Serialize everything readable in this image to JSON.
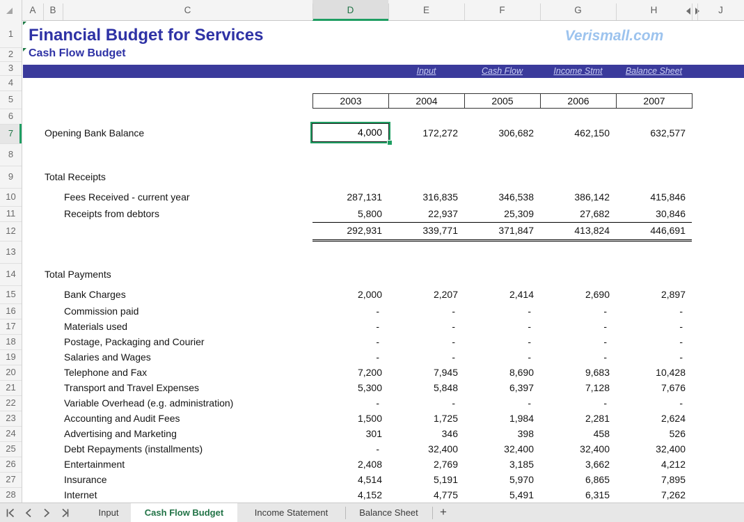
{
  "grid": {
    "column_headers": [
      "A",
      "B",
      "C",
      "D",
      "E",
      "F",
      "G",
      "H",
      "J"
    ],
    "active_column": "D",
    "row_numbers": [
      "1",
      "2",
      "3",
      "4",
      "5",
      "6",
      "7",
      "8",
      "9",
      "10",
      "11",
      "12",
      "13",
      "14",
      "15",
      "16",
      "17",
      "18",
      "19",
      "20",
      "21",
      "22",
      "23",
      "24",
      "25",
      "26",
      "27",
      "28"
    ],
    "active_row": "7"
  },
  "header": {
    "title": "Financial Budget for Services",
    "subtitle": "Cash Flow Budget",
    "brand": "Verismall.com"
  },
  "nav_links": [
    {
      "label": "Input"
    },
    {
      "label": "Cash Flow"
    },
    {
      "label": "Income Stmt"
    },
    {
      "label": "Balance Sheet"
    }
  ],
  "years": [
    "2003",
    "2004",
    "2005",
    "2006",
    "2007"
  ],
  "budget": {
    "opening": {
      "label": "Opening Bank Balance",
      "values": [
        "4,000",
        "172,272",
        "306,682",
        "462,150",
        "632,577"
      ]
    },
    "receipts": {
      "header": "Total Receipts",
      "rows": [
        {
          "label": "Fees Received - current year",
          "values": [
            "287,131",
            "316,835",
            "346,538",
            "386,142",
            "415,846"
          ]
        },
        {
          "label": "Receipts from debtors",
          "values": [
            "5,800",
            "22,937",
            "25,309",
            "27,682",
            "30,846"
          ]
        }
      ],
      "totals": [
        "292,931",
        "339,771",
        "371,847",
        "413,824",
        "446,691"
      ]
    },
    "payments": {
      "header": "Total Payments",
      "rows": [
        {
          "label": "Bank Charges",
          "values": [
            "2,000",
            "2,207",
            "2,414",
            "2,690",
            "2,897"
          ]
        },
        {
          "label": "Commission paid",
          "values": [
            "-",
            "-",
            "-",
            "-",
            "-"
          ]
        },
        {
          "label": "Materials used",
          "values": [
            "-",
            "-",
            "-",
            "-",
            "-"
          ]
        },
        {
          "label": "Postage, Packaging and Courier",
          "values": [
            "-",
            "-",
            "-",
            "-",
            "-"
          ]
        },
        {
          "label": "Salaries and Wages",
          "values": [
            "-",
            "-",
            "-",
            "-",
            "-"
          ]
        },
        {
          "label": "Telephone and Fax",
          "values": [
            "7,200",
            "7,945",
            "8,690",
            "9,683",
            "10,428"
          ]
        },
        {
          "label": "Transport and Travel Expenses",
          "values": [
            "5,300",
            "5,848",
            "6,397",
            "7,128",
            "7,676"
          ]
        },
        {
          "label": "Variable Overhead (e.g. administration)",
          "values": [
            "-",
            "-",
            "-",
            "-",
            "-"
          ]
        },
        {
          "label": "Accounting and Audit Fees",
          "values": [
            "1,500",
            "1,725",
            "1,984",
            "2,281",
            "2,624"
          ]
        },
        {
          "label": "Advertising and Marketing",
          "values": [
            "301",
            "346",
            "398",
            "458",
            "526"
          ]
        },
        {
          "label": "Debt Repayments (installments)",
          "values": [
            "-",
            "32,400",
            "32,400",
            "32,400",
            "32,400"
          ]
        },
        {
          "label": "Entertainment",
          "values": [
            "2,408",
            "2,769",
            "3,185",
            "3,662",
            "4,212"
          ]
        },
        {
          "label": "Insurance",
          "values": [
            "4,514",
            "5,191",
            "5,970",
            "6,865",
            "7,895"
          ]
        },
        {
          "label": "Internet",
          "values": [
            "4,152",
            "4,775",
            "5,491",
            "6,315",
            "7,262"
          ]
        }
      ]
    }
  },
  "tab_bar": {
    "tabs": [
      {
        "label": "Input",
        "active": false
      },
      {
        "label": "Cash Flow Budget",
        "active": true
      },
      {
        "label": "Income Statement",
        "active": false
      },
      {
        "label": "Balance Sheet",
        "active": false
      }
    ],
    "add_button": "+"
  },
  "icons": {
    "select_all": "select-all-triangle",
    "hidden_columns": "hidden-column-split-arrows",
    "tab_nav": [
      "first-sheet",
      "previous-sheet",
      "next-sheet",
      "last-sheet"
    ],
    "fill_handle": "selection-fill-handle"
  },
  "colors": {
    "accent_green": "#217346",
    "selection_green": "#1e9e62",
    "band_blue": "#3a3a9b",
    "title_blue": "#2e32a5",
    "brand_blue": "#9cc3ee",
    "link_lavender": "#c9cdf4"
  }
}
